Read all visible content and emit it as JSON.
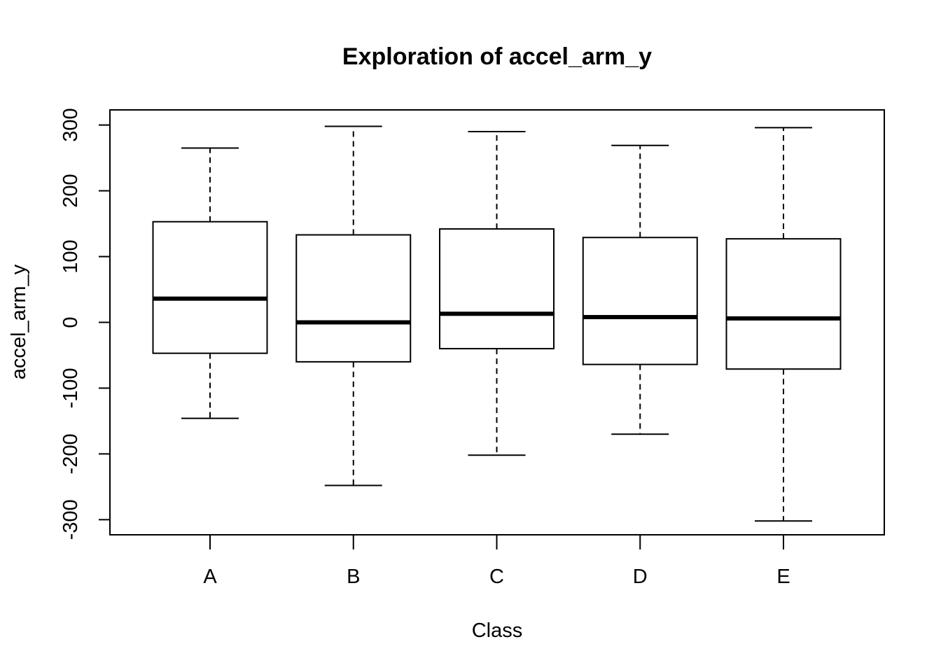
{
  "chart_data": {
    "type": "boxplot",
    "title": "Exploration of  accel_arm_y",
    "xlabel": "Class",
    "ylabel": "accel_arm_y",
    "ylim": [
      -323,
      323
    ],
    "yticks": [
      -300,
      -200,
      -100,
      0,
      100,
      200,
      300
    ],
    "ytick_labels": [
      "-300",
      "-200",
      "-100",
      "0",
      "100",
      "200",
      "300"
    ],
    "categories": [
      "A",
      "B",
      "C",
      "D",
      "E"
    ],
    "boxes": [
      {
        "category": "A",
        "whisker_low": -146,
        "q1": -47,
        "median": 36,
        "q3": 153,
        "whisker_high": 265
      },
      {
        "category": "B",
        "whisker_low": -248,
        "q1": -60,
        "median": 0,
        "q3": 133,
        "whisker_high": 298
      },
      {
        "category": "C",
        "whisker_low": -202,
        "q1": -40,
        "median": 13,
        "q3": 142,
        "whisker_high": 290
      },
      {
        "category": "D",
        "whisker_low": -170,
        "q1": -64,
        "median": 8,
        "q3": 129,
        "whisker_high": 269
      },
      {
        "category": "E",
        "whisker_low": -302,
        "q1": -71,
        "median": 6,
        "q3": 127,
        "whisker_high": 296
      }
    ],
    "grid": false,
    "legend": "none"
  }
}
